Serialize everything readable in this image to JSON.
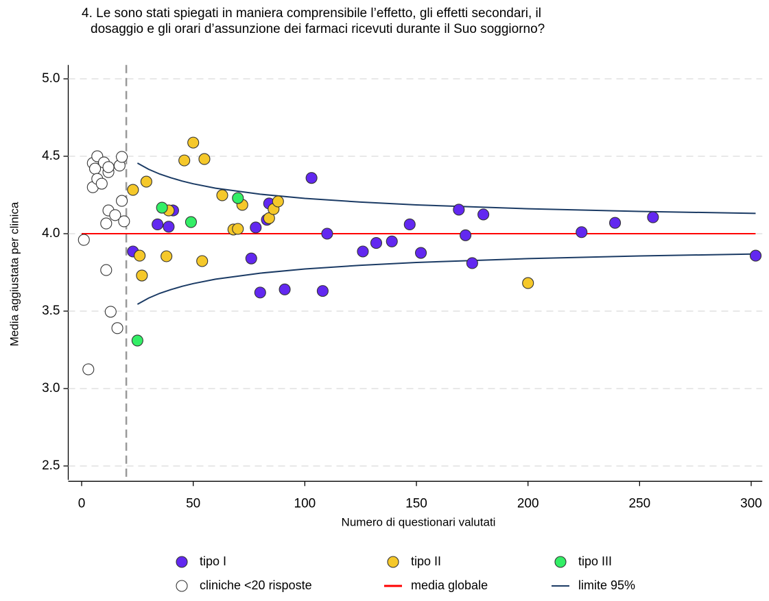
{
  "chart_data": {
    "type": "scatter",
    "title": [
      "4. Le sono stati spiegati in maniera comprensibile l’effetto, gli effetti secondari, il",
      "dosaggio e gli orari d’assunzione dei farmaci ricevuti durante il Suo soggiorno?"
    ],
    "x_label": "Numero di questionari valutati",
    "y_label": "Media aggiustata per clinica",
    "xlim": [
      -6,
      305
    ],
    "ylim": [
      2.41,
      5.09
    ],
    "xticks": [
      0,
      50,
      100,
      150,
      200,
      250,
      300
    ],
    "yticks": [
      {
        "value": 2.5,
        "label": "2.5"
      },
      {
        "value": 3,
        "label": "3.0"
      },
      {
        "value": 3.5,
        "label": "3.5"
      },
      {
        "value": 4,
        "label": "4.0"
      },
      {
        "value": 4.5,
        "label": "4.5"
      },
      {
        "value": 5,
        "label": "5.0"
      }
    ],
    "grid": true,
    "vline": 20,
    "series": [
      {
        "name": "tipo I",
        "kind": "points",
        "color": "#6228f0",
        "x": [
          23,
          34,
          39,
          41,
          76,
          78,
          80,
          83,
          84,
          91,
          103,
          108,
          110,
          126,
          132,
          139,
          147,
          152,
          169,
          172,
          175,
          180,
          224,
          239,
          256,
          302
        ],
        "values": [
          3.885,
          4.06,
          4.045,
          4.15,
          3.84,
          4.04,
          3.62,
          4.09,
          4.195,
          3.64,
          4.36,
          3.63,
          4.0,
          3.885,
          3.94,
          3.95,
          4.06,
          3.876,
          4.155,
          3.99,
          3.81,
          4.124,
          4.01,
          4.07,
          4.106,
          3.858
        ]
      },
      {
        "name": "tipo II",
        "kind": "points",
        "color": "#f5c82a",
        "x": [
          23,
          26,
          27,
          29,
          38,
          39,
          46,
          50,
          54,
          55,
          63,
          68,
          70,
          72,
          84,
          86,
          88,
          200
        ],
        "values": [
          4.283,
          3.858,
          3.73,
          4.336,
          3.854,
          4.15,
          4.473,
          4.588,
          3.823,
          4.482,
          4.248,
          4.027,
          4.031,
          4.186,
          4.1,
          4.159,
          4.208,
          3.681
        ]
      },
      {
        "name": "tipo III",
        "kind": "points",
        "color": "#33ee66",
        "x": [
          25,
          36,
          49,
          70
        ],
        "values": [
          3.31,
          4.168,
          4.075,
          4.23
        ]
      },
      {
        "name": "cliniche <20 risposte",
        "kind": "points",
        "color": "#ffffff",
        "x": [
          1,
          3,
          5,
          5,
          6,
          7,
          7,
          9,
          10,
          11,
          11,
          12,
          12,
          12,
          13,
          15,
          16,
          17,
          18,
          18,
          19
        ],
        "values": [
          3.96,
          3.124,
          4.3,
          4.456,
          4.42,
          4.5,
          4.354,
          4.323,
          4.46,
          4.066,
          3.765,
          4.398,
          4.43,
          4.15,
          3.496,
          4.12,
          3.39,
          4.44,
          4.496,
          4.212,
          4.08
        ]
      },
      {
        "name": "media globale",
        "kind": "line",
        "color": "#ff0000",
        "x": [
          0,
          302
        ],
        "values": [
          4,
          4
        ]
      },
      {
        "name": "limite 95%",
        "kind": "band",
        "color": "#1a3a64",
        "x": [
          25,
          30,
          35,
          40,
          45,
          50,
          60,
          80,
          100,
          125,
          150,
          200,
          250,
          302
        ],
        "values": [
          4.456,
          4.416,
          4.385,
          4.361,
          4.34,
          4.322,
          4.294,
          4.255,
          4.228,
          4.204,
          4.186,
          4.161,
          4.144,
          4.131
        ],
        "lower": [
          3.544,
          3.584,
          3.615,
          3.639,
          3.66,
          3.678,
          3.706,
          3.745,
          3.772,
          3.796,
          3.814,
          3.839,
          3.856,
          3.869
        ]
      }
    ]
  }
}
